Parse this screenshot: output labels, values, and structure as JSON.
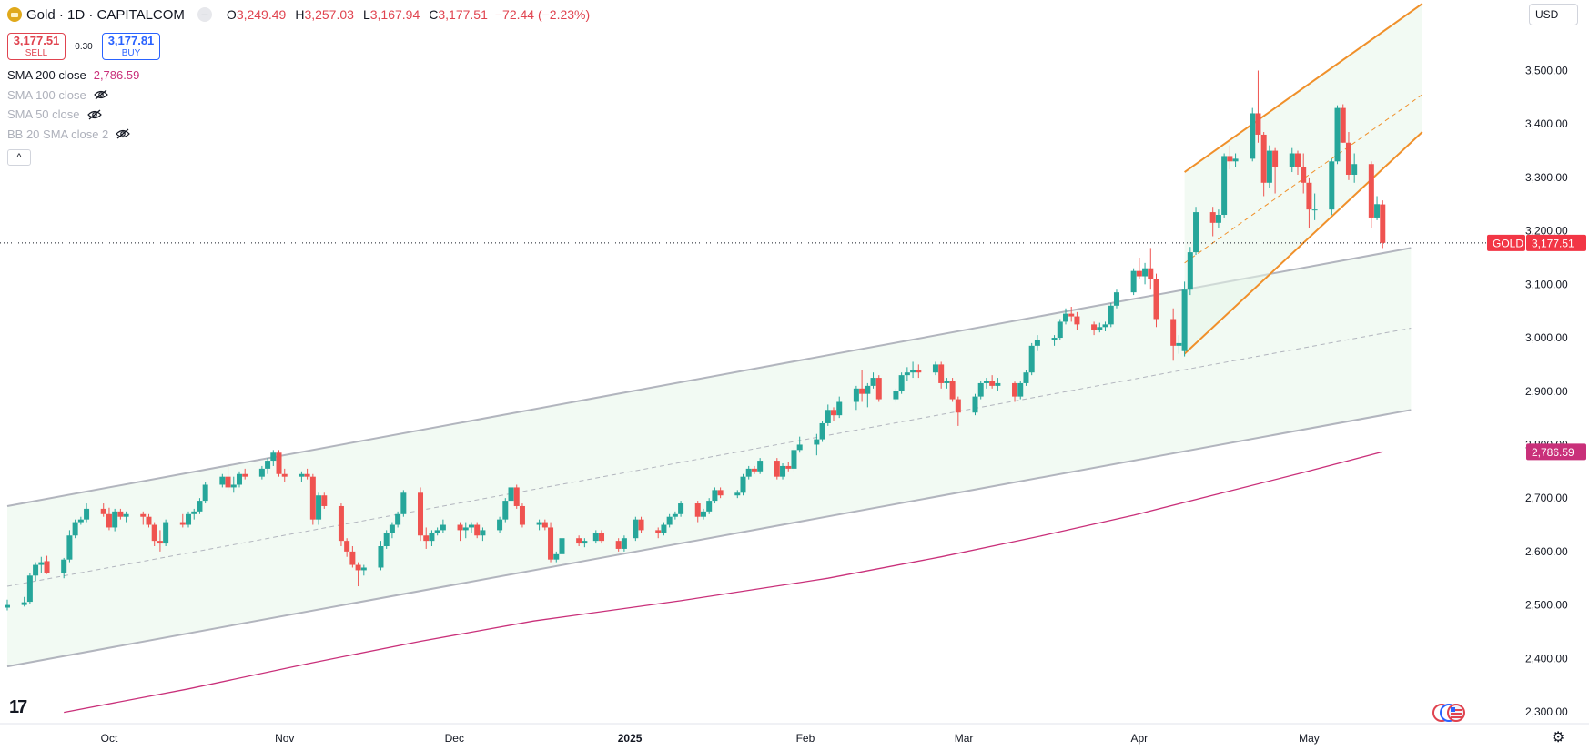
{
  "header": {
    "symbol": "Gold · 1D · CAPITALCOM",
    "ohlc": [
      {
        "k": "O",
        "v": "3,249.49"
      },
      {
        "k": "H",
        "v": "3,257.03"
      },
      {
        "k": "L",
        "v": "3,167.94"
      },
      {
        "k": "C",
        "v": "3,177.51"
      }
    ],
    "change": "−72.44 (−2.23%)",
    "collapse_glyph": "−"
  },
  "trade": {
    "sell_price": "3,177.51",
    "sell_label": "SELL",
    "spread": "0.30",
    "buy_price": "3,177.81",
    "buy_label": "BUY"
  },
  "indicators": [
    {
      "name": "SMA 200 close",
      "value": "2,786.59"
    },
    {
      "name": "SMA 100 close"
    },
    {
      "name": "SMA 50 close"
    },
    {
      "name": "BB 20 SMA close 2"
    }
  ],
  "collapse_caret": "^",
  "currency": "USD",
  "tv_logo": "17",
  "gear_glyph": "⚙",
  "colors": {
    "up": "#26a69a",
    "down": "#ef5350",
    "sma200": "#c9307a",
    "channel": "#b2b5be",
    "short_channel": "#f0902a",
    "fill": "#e8f5e9",
    "price_tag": "#f23645"
  },
  "chart_data": {
    "type": "candlestick",
    "symbol": "GOLD",
    "y_range": [
      2270,
      3560
    ],
    "y_ticks": [
      "2,300.00",
      "2,400.00",
      "2,500.00",
      "2,600.00",
      "2,700.00",
      "2,800.00",
      "2,900.00",
      "3,000.00",
      "3,100.00",
      "3,200.00",
      "3,300.00",
      "3,400.00",
      "3,500.00"
    ],
    "y_tick_values": [
      2300,
      2400,
      2500,
      2600,
      2700,
      2800,
      2900,
      3000,
      3100,
      3200,
      3300,
      3400,
      3500
    ],
    "x_range": [
      "2024-09-13",
      "2025-05-31"
    ],
    "x_labels": [
      {
        "date": "2024-10-01",
        "label": "Oct"
      },
      {
        "date": "2024-11-01",
        "label": "Nov"
      },
      {
        "date": "2024-12-01",
        "label": "Dec"
      },
      {
        "date": "2025-01-01",
        "label": "2025"
      },
      {
        "date": "2025-02-01",
        "label": "Feb"
      },
      {
        "date": "2025-03-01",
        "label": "Mar"
      },
      {
        "date": "2025-04-01",
        "label": "Apr"
      },
      {
        "date": "2025-05-01",
        "label": "May"
      }
    ],
    "last_price": {
      "label": "GOLD",
      "value": 3177.51,
      "text": "3,177.51"
    },
    "sma200_last": {
      "value": 2786.59,
      "text": "2,786.59"
    },
    "candles": [
      [
        "2024-09-13",
        2495,
        2510,
        2490,
        2500
      ],
      [
        "2024-09-16",
        2500,
        2515,
        2497,
        2505
      ],
      [
        "2024-09-17",
        2506,
        2560,
        2502,
        2555
      ],
      [
        "2024-09-18",
        2555,
        2580,
        2545,
        2575
      ],
      [
        "2024-09-19",
        2575,
        2590,
        2560,
        2580
      ],
      [
        "2024-09-20",
        2582,
        2592,
        2558,
        2560
      ],
      [
        "2024-09-23",
        2560,
        2588,
        2550,
        2585
      ],
      [
        "2024-09-24",
        2585,
        2640,
        2580,
        2630
      ],
      [
        "2024-09-25",
        2630,
        2660,
        2625,
        2655
      ],
      [
        "2024-09-26",
        2655,
        2665,
        2650,
        2660
      ],
      [
        "2024-09-27",
        2660,
        2690,
        2655,
        2680
      ],
      [
        "2024-09-30",
        2680,
        2690,
        2665,
        2670
      ],
      [
        "2024-10-01",
        2670,
        2682,
        2640,
        2645
      ],
      [
        "2024-10-02",
        2645,
        2680,
        2638,
        2675
      ],
      [
        "2024-10-03",
        2675,
        2680,
        2660,
        2665
      ],
      [
        "2024-10-04",
        2665,
        2675,
        2655,
        2670
      ],
      [
        "2024-10-07",
        2670,
        2675,
        2650,
        2665
      ],
      [
        "2024-10-08",
        2665,
        2670,
        2645,
        2650
      ],
      [
        "2024-10-09",
        2650,
        2655,
        2610,
        2620
      ],
      [
        "2024-10-10",
        2620,
        2640,
        2600,
        2615
      ],
      [
        "2024-10-11",
        2615,
        2660,
        2610,
        2655
      ],
      [
        "2024-10-14",
        2655,
        2670,
        2645,
        2650
      ],
      [
        "2024-10-15",
        2650,
        2675,
        2645,
        2670
      ],
      [
        "2024-10-16",
        2670,
        2680,
        2660,
        2675
      ],
      [
        "2024-10-17",
        2675,
        2700,
        2670,
        2695
      ],
      [
        "2024-10-18",
        2695,
        2730,
        2690,
        2725
      ],
      [
        "2024-10-21",
        2725,
        2745,
        2720,
        2740
      ],
      [
        "2024-10-22",
        2740,
        2760,
        2715,
        2720
      ],
      [
        "2024-10-23",
        2720,
        2740,
        2710,
        2725
      ],
      [
        "2024-10-24",
        2725,
        2750,
        2720,
        2745
      ],
      [
        "2024-10-25",
        2745,
        2755,
        2735,
        2740
      ],
      [
        "2024-10-28",
        2740,
        2760,
        2735,
        2755
      ],
      [
        "2024-10-29",
        2755,
        2775,
        2745,
        2770
      ],
      [
        "2024-10-30",
        2770,
        2790,
        2760,
        2785
      ],
      [
        "2024-10-31",
        2785,
        2790,
        2740,
        2745
      ],
      [
        "2024-11-01",
        2745,
        2755,
        2730,
        2740
      ],
      [
        "2024-11-04",
        2740,
        2750,
        2730,
        2745
      ],
      [
        "2024-11-05",
        2745,
        2755,
        2735,
        2740
      ],
      [
        "2024-11-06",
        2740,
        2745,
        2650,
        2660
      ],
      [
        "2024-11-07",
        2660,
        2710,
        2650,
        2705
      ],
      [
        "2024-11-08",
        2705,
        2710,
        2680,
        2685
      ],
      [
        "2024-11-11",
        2685,
        2690,
        2610,
        2620
      ],
      [
        "2024-11-12",
        2620,
        2625,
        2590,
        2600
      ],
      [
        "2024-11-13",
        2600,
        2610,
        2570,
        2575
      ],
      [
        "2024-11-14",
        2575,
        2580,
        2535,
        2565
      ],
      [
        "2024-11-15",
        2565,
        2575,
        2555,
        2570
      ],
      [
        "2024-11-18",
        2570,
        2620,
        2565,
        2610
      ],
      [
        "2024-11-19",
        2610,
        2640,
        2605,
        2635
      ],
      [
        "2024-11-20",
        2635,
        2655,
        2625,
        2650
      ],
      [
        "2024-11-21",
        2650,
        2675,
        2645,
        2670
      ],
      [
        "2024-11-22",
        2670,
        2715,
        2665,
        2710
      ],
      [
        "2024-11-25",
        2710,
        2720,
        2620,
        2630
      ],
      [
        "2024-11-26",
        2630,
        2645,
        2605,
        2620
      ],
      [
        "2024-11-27",
        2620,
        2640,
        2610,
        2635
      ],
      [
        "2024-11-28",
        2635,
        2645,
        2630,
        2640
      ],
      [
        "2024-11-29",
        2640,
        2660,
        2635,
        2650
      ],
      [
        "2024-12-02",
        2650,
        2655,
        2620,
        2640
      ],
      [
        "2024-12-03",
        2640,
        2655,
        2625,
        2645
      ],
      [
        "2024-12-04",
        2645,
        2655,
        2635,
        2650
      ],
      [
        "2024-12-05",
        2650,
        2655,
        2625,
        2630
      ],
      [
        "2024-12-06",
        2630,
        2645,
        2620,
        2640
      ],
      [
        "2024-12-09",
        2640,
        2665,
        2635,
        2660
      ],
      [
        "2024-12-10",
        2660,
        2700,
        2655,
        2695
      ],
      [
        "2024-12-11",
        2695,
        2725,
        2690,
        2720
      ],
      [
        "2024-12-12",
        2720,
        2725,
        2680,
        2685
      ],
      [
        "2024-12-13",
        2685,
        2690,
        2645,
        2650
      ],
      [
        "2024-12-16",
        2650,
        2660,
        2640,
        2655
      ],
      [
        "2024-12-17",
        2655,
        2660,
        2640,
        2645
      ],
      [
        "2024-12-18",
        2645,
        2655,
        2580,
        2585
      ],
      [
        "2024-12-19",
        2585,
        2600,
        2580,
        2595
      ],
      [
        "2024-12-20",
        2595,
        2630,
        2590,
        2625
      ],
      [
        "2024-12-23",
        2625,
        2630,
        2610,
        2615
      ],
      [
        "2024-12-24",
        2615,
        2625,
        2608,
        2620
      ],
      [
        "2024-12-26",
        2620,
        2640,
        2615,
        2635
      ],
      [
        "2024-12-27",
        2635,
        2640,
        2615,
        2620
      ],
      [
        "2024-12-30",
        2620,
        2625,
        2600,
        2605
      ],
      [
        "2024-12-31",
        2605,
        2630,
        2600,
        2625
      ],
      [
        "2025-01-02",
        2625,
        2665,
        2620,
        2660
      ],
      [
        "2025-01-03",
        2660,
        2665,
        2635,
        2640
      ],
      [
        "2025-01-06",
        2640,
        2645,
        2625,
        2635
      ],
      [
        "2025-01-07",
        2635,
        2655,
        2630,
        2650
      ],
      [
        "2025-01-08",
        2650,
        2670,
        2645,
        2665
      ],
      [
        "2025-01-09",
        2665,
        2675,
        2660,
        2670
      ],
      [
        "2025-01-10",
        2670,
        2695,
        2665,
        2690
      ],
      [
        "2025-01-13",
        2690,
        2695,
        2655,
        2665
      ],
      [
        "2025-01-14",
        2665,
        2680,
        2660,
        2675
      ],
      [
        "2025-01-15",
        2675,
        2700,
        2670,
        2695
      ],
      [
        "2025-01-16",
        2695,
        2720,
        2690,
        2715
      ],
      [
        "2025-01-17",
        2715,
        2720,
        2700,
        2705
      ],
      [
        "2025-01-20",
        2705,
        2715,
        2700,
        2710
      ],
      [
        "2025-01-21",
        2710,
        2745,
        2705,
        2740
      ],
      [
        "2025-01-22",
        2740,
        2760,
        2735,
        2755
      ],
      [
        "2025-01-23",
        2755,
        2760,
        2745,
        2750
      ],
      [
        "2025-01-24",
        2750,
        2775,
        2745,
        2770
      ],
      [
        "2025-01-27",
        2770,
        2775,
        2735,
        2740
      ],
      [
        "2025-01-28",
        2740,
        2765,
        2735,
        2760
      ],
      [
        "2025-01-29",
        2760,
        2768,
        2750,
        2755
      ],
      [
        "2025-01-30",
        2755,
        2795,
        2750,
        2790
      ],
      [
        "2025-01-31",
        2790,
        2815,
        2785,
        2800
      ],
      [
        "2025-02-03",
        2800,
        2820,
        2780,
        2810
      ],
      [
        "2025-02-04",
        2810,
        2845,
        2805,
        2840
      ],
      [
        "2025-02-05",
        2840,
        2875,
        2835,
        2865
      ],
      [
        "2025-02-06",
        2865,
        2870,
        2845,
        2855
      ],
      [
        "2025-02-07",
        2855,
        2890,
        2850,
        2880
      ],
      [
        "2025-02-10",
        2880,
        2910,
        2865,
        2905
      ],
      [
        "2025-02-11",
        2905,
        2940,
        2880,
        2895
      ],
      [
        "2025-02-12",
        2895,
        2915,
        2870,
        2910
      ],
      [
        "2025-02-13",
        2910,
        2935,
        2905,
        2925
      ],
      [
        "2025-02-14",
        2925,
        2930,
        2880,
        2885
      ],
      [
        "2025-02-17",
        2885,
        2905,
        2880,
        2900
      ],
      [
        "2025-02-18",
        2900,
        2935,
        2895,
        2930
      ],
      [
        "2025-02-19",
        2930,
        2945,
        2920,
        2935
      ],
      [
        "2025-02-20",
        2935,
        2955,
        2925,
        2940
      ],
      [
        "2025-02-21",
        2940,
        2950,
        2925,
        2935
      ],
      [
        "2025-02-24",
        2935,
        2955,
        2930,
        2950
      ],
      [
        "2025-02-25",
        2950,
        2955,
        2905,
        2915
      ],
      [
        "2025-02-26",
        2915,
        2925,
        2905,
        2920
      ],
      [
        "2025-02-27",
        2920,
        2925,
        2880,
        2885
      ],
      [
        "2025-02-28",
        2885,
        2890,
        2835,
        2860
      ],
      [
        "2025-03-03",
        2860,
        2895,
        2855,
        2890
      ],
      [
        "2025-03-04",
        2890,
        2920,
        2885,
        2915
      ],
      [
        "2025-03-05",
        2915,
        2925,
        2905,
        2920
      ],
      [
        "2025-03-06",
        2920,
        2930,
        2905,
        2910
      ],
      [
        "2025-03-07",
        2910,
        2925,
        2900,
        2915
      ],
      [
        "2025-03-10",
        2915,
        2918,
        2880,
        2890
      ],
      [
        "2025-03-11",
        2890,
        2920,
        2885,
        2915
      ],
      [
        "2025-03-12",
        2915,
        2940,
        2910,
        2935
      ],
      [
        "2025-03-13",
        2935,
        2990,
        2930,
        2985
      ],
      [
        "2025-03-14",
        2985,
        3005,
        2975,
        2995
      ],
      [
        "2025-03-17",
        2995,
        3005,
        2985,
        3000
      ],
      [
        "2025-03-18",
        3000,
        3035,
        2995,
        3030
      ],
      [
        "2025-03-19",
        3030,
        3055,
        3025,
        3045
      ],
      [
        "2025-03-20",
        3045,
        3058,
        3030,
        3040
      ],
      [
        "2025-03-21",
        3040,
        3048,
        3015,
        3025
      ],
      [
        "2025-03-24",
        3025,
        3030,
        3005,
        3015
      ],
      [
        "2025-03-25",
        3015,
        3028,
        3010,
        3020
      ],
      [
        "2025-03-26",
        3020,
        3030,
        3012,
        3025
      ],
      [
        "2025-03-27",
        3025,
        3065,
        3020,
        3060
      ],
      [
        "2025-03-28",
        3060,
        3090,
        3055,
        3085
      ],
      [
        "2025-03-31",
        3085,
        3130,
        3080,
        3125
      ],
      [
        "2025-04-01",
        3125,
        3150,
        3110,
        3115
      ],
      [
        "2025-04-02",
        3115,
        3140,
        3100,
        3130
      ],
      [
        "2025-04-03",
        3130,
        3168,
        3090,
        3110
      ],
      [
        "2025-04-04",
        3110,
        3120,
        3020,
        3035
      ],
      [
        "2025-04-07",
        3035,
        3055,
        2957,
        2985
      ],
      [
        "2025-04-08",
        2985,
        3005,
        2970,
        2990
      ],
      [
        "2025-04-09",
        2975,
        3105,
        2965,
        3090
      ],
      [
        "2025-04-10",
        3090,
        3170,
        3080,
        3160
      ],
      [
        "2025-04-11",
        3160,
        3245,
        3155,
        3235
      ],
      [
        "2025-04-14",
        3235,
        3245,
        3190,
        3215
      ],
      [
        "2025-04-15",
        3215,
        3240,
        3205,
        3230
      ],
      [
        "2025-04-16",
        3230,
        3345,
        3225,
        3340
      ],
      [
        "2025-04-17",
        3340,
        3360,
        3315,
        3330
      ],
      [
        "2025-04-18",
        3330,
        3345,
        3320,
        3335
      ],
      [
        "2025-04-21",
        3335,
        3430,
        3330,
        3420
      ],
      [
        "2025-04-22",
        3420,
        3500,
        3365,
        3380
      ],
      [
        "2025-04-23",
        3380,
        3385,
        3265,
        3290
      ],
      [
        "2025-04-24",
        3290,
        3360,
        3280,
        3350
      ],
      [
        "2025-04-25",
        3350,
        3355,
        3270,
        3320
      ],
      [
        "2025-04-28",
        3320,
        3355,
        3310,
        3345
      ],
      [
        "2025-04-29",
        3345,
        3350,
        3305,
        3320
      ],
      [
        "2025-04-30",
        3320,
        3345,
        3270,
        3290
      ],
      [
        "2025-05-01",
        3290,
        3300,
        3205,
        3240
      ],
      [
        "2025-05-02",
        3240,
        3270,
        3220,
        3240
      ],
      [
        "2025-05-05",
        3240,
        3335,
        3230,
        3330
      ],
      [
        "2025-05-06",
        3330,
        3435,
        3325,
        3430
      ],
      [
        "2025-05-07",
        3430,
        3437,
        3365,
        3365
      ],
      [
        "2025-05-08",
        3365,
        3385,
        3295,
        3305
      ],
      [
        "2025-05-09",
        3305,
        3345,
        3290,
        3325
      ],
      [
        "2025-05-12",
        3325,
        3330,
        3205,
        3225
      ],
      [
        "2025-05-13",
        3225,
        3265,
        3220,
        3250
      ],
      [
        "2025-05-14",
        3249.49,
        3257.03,
        3167.94,
        3177.51
      ]
    ],
    "sma200": [
      [
        "2024-09-23",
        2299
      ],
      [
        "2024-10-15",
        2343
      ],
      [
        "2024-11-05",
        2390
      ],
      [
        "2024-11-25",
        2432
      ],
      [
        "2024-12-15",
        2470
      ],
      [
        "2025-01-10",
        2508
      ],
      [
        "2025-02-05",
        2550
      ],
      [
        "2025-02-25",
        2590
      ],
      [
        "2025-03-15",
        2630
      ],
      [
        "2025-03-31",
        2668
      ],
      [
        "2025-04-15",
        2708
      ],
      [
        "2025-04-30",
        2748
      ],
      [
        "2025-05-14",
        2786.59
      ]
    ],
    "long_channel": {
      "start": "2024-09-13",
      "end": "2025-05-19",
      "upper": [
        2685,
        3168
      ],
      "middle": [
        2535,
        3018
      ],
      "lower": [
        2385,
        2865
      ]
    },
    "short_channel": {
      "start": "2025-04-09",
      "end": "2025-05-21",
      "upper": [
        3310,
        3625
      ],
      "middle": [
        3140,
        3455
      ],
      "lower": [
        2970,
        3385
      ]
    }
  }
}
